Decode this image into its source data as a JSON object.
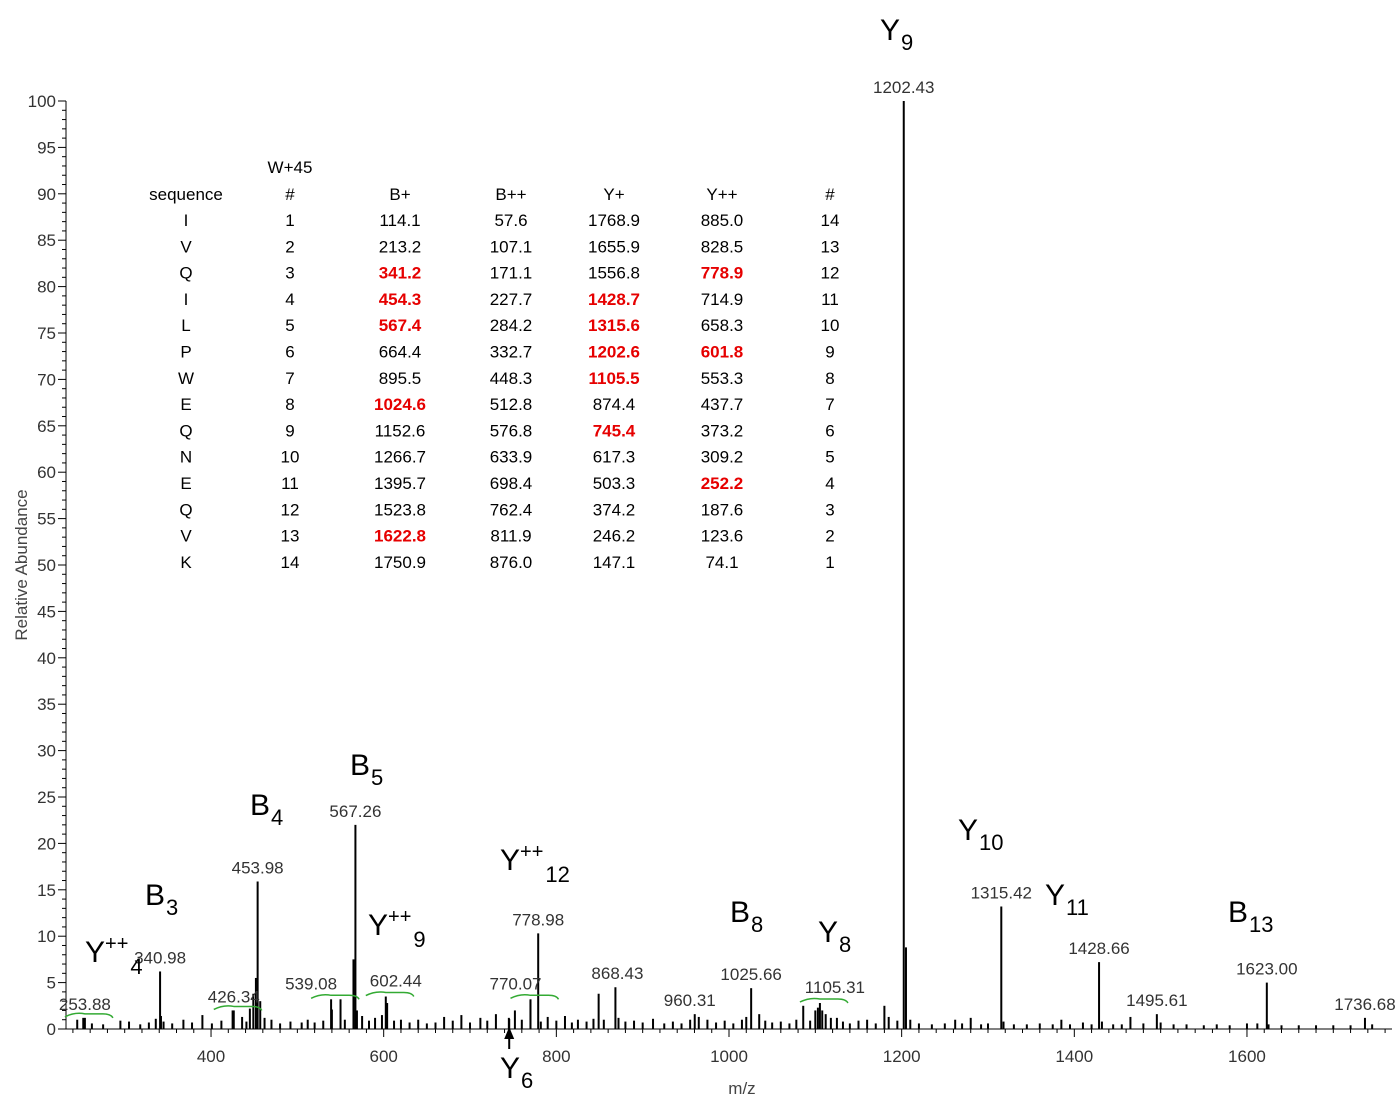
{
  "chart_data": {
    "type": "bar",
    "xlabel": "m/z",
    "ylabel": "Relative Abundance",
    "xlim": [
      232,
      1768
    ],
    "ylim": [
      0,
      100
    ],
    "x_ticks": [
      "400",
      "600",
      "800",
      "1000",
      "1200",
      "1400",
      "1600"
    ],
    "y_ticks": [
      "0",
      "5",
      "10",
      "15",
      "20",
      "25",
      "30",
      "35",
      "40",
      "45",
      "50",
      "55",
      "60",
      "65",
      "70",
      "75",
      "80",
      "85",
      "90",
      "95",
      "100"
    ],
    "labeled_peaks": [
      {
        "mz": 253.88,
        "label": "253.88",
        "value": 1.2
      },
      {
        "mz": 340.98,
        "label": "340.98",
        "value": 6.2
      },
      {
        "mz": 426.34,
        "label": "426.34",
        "value": 2.0
      },
      {
        "mz": 453.98,
        "label": "453.98",
        "value": 15.9
      },
      {
        "mz": 539.08,
        "label": "539.08",
        "value": 3.2
      },
      {
        "mz": 567.26,
        "label": "567.26",
        "value": 22.0
      },
      {
        "mz": 602.44,
        "label": "602.44",
        "value": 3.5
      },
      {
        "mz": 770.07,
        "label": "770.07",
        "value": 3.2
      },
      {
        "mz": 778.98,
        "label": "778.98",
        "value": 10.3
      },
      {
        "mz": 868.43,
        "label": "868.43",
        "value": 4.5
      },
      {
        "mz": 960.31,
        "label": "960.31",
        "value": 1.6
      },
      {
        "mz": 1025.66,
        "label": "1025.66",
        "value": 4.4
      },
      {
        "mz": 1105.31,
        "label": "1105.31",
        "value": 2.8
      },
      {
        "mz": 1202.43,
        "label": "1202.43",
        "value": 100
      },
      {
        "mz": 1315.42,
        "label": "1315.42",
        "value": 13.2
      },
      {
        "mz": 1428.66,
        "label": "1428.66",
        "value": 7.2
      },
      {
        "mz": 1495.61,
        "label": "1495.61",
        "value": 1.6
      },
      {
        "mz": 1623.0,
        "label": "1623.00",
        "value": 5.0
      },
      {
        "mz": 1736.68,
        "label": "1736.68",
        "value": 1.2
      }
    ],
    "minor_peaks": [
      [
        245,
        1.0
      ],
      [
        252,
        1.2
      ],
      [
        262,
        0.6
      ],
      [
        275,
        0.5
      ],
      [
        295,
        0.9
      ],
      [
        305,
        0.8
      ],
      [
        318,
        0.5
      ],
      [
        328,
        0.7
      ],
      [
        336,
        1.1
      ],
      [
        342,
        1.4
      ],
      [
        345,
        0.8
      ],
      [
        355,
        0.6
      ],
      [
        368,
        1.0
      ],
      [
        378,
        0.7
      ],
      [
        390,
        1.5
      ],
      [
        401,
        0.6
      ],
      [
        412,
        0.9
      ],
      [
        425,
        2.0
      ],
      [
        436,
        1.3
      ],
      [
        441,
        0.8
      ],
      [
        445,
        2.2
      ],
      [
        449,
        3.8
      ],
      [
        452,
        5.5
      ],
      [
        457,
        3.0
      ],
      [
        462,
        1.2
      ],
      [
        470,
        1.0
      ],
      [
        480,
        0.6
      ],
      [
        492,
        0.8
      ],
      [
        505,
        0.7
      ],
      [
        512,
        1.0
      ],
      [
        520,
        0.7
      ],
      [
        530,
        0.9
      ],
      [
        540,
        2.1
      ],
      [
        550,
        3.2
      ],
      [
        555,
        1.0
      ],
      [
        565,
        7.5
      ],
      [
        569,
        2.0
      ],
      [
        575,
        1.4
      ],
      [
        583,
        0.9
      ],
      [
        590,
        1.2
      ],
      [
        598,
        1.5
      ],
      [
        604,
        2.8
      ],
      [
        612,
        0.9
      ],
      [
        620,
        1.0
      ],
      [
        630,
        0.7
      ],
      [
        640,
        1.0
      ],
      [
        650,
        0.6
      ],
      [
        660,
        0.7
      ],
      [
        670,
        1.3
      ],
      [
        680,
        0.9
      ],
      [
        690,
        1.5
      ],
      [
        700,
        0.7
      ],
      [
        712,
        1.2
      ],
      [
        720,
        0.9
      ],
      [
        730,
        1.6
      ],
      [
        745,
        1.2
      ],
      [
        752,
        2.0
      ],
      [
        760,
        1.0
      ],
      [
        770,
        3.1
      ],
      [
        782,
        0.8
      ],
      [
        790,
        1.3
      ],
      [
        800,
        0.9
      ],
      [
        810,
        1.4
      ],
      [
        818,
        0.7
      ],
      [
        825,
        1.0
      ],
      [
        835,
        0.8
      ],
      [
        843,
        1.1
      ],
      [
        849,
        3.8
      ],
      [
        855,
        1.0
      ],
      [
        872,
        1.2
      ],
      [
        880,
        0.8
      ],
      [
        890,
        0.9
      ],
      [
        900,
        0.7
      ],
      [
        912,
        1.1
      ],
      [
        925,
        0.6
      ],
      [
        935,
        0.8
      ],
      [
        945,
        0.6
      ],
      [
        955,
        1.0
      ],
      [
        965,
        1.3
      ],
      [
        975,
        1.0
      ],
      [
        985,
        0.7
      ],
      [
        995,
        0.9
      ],
      [
        1005,
        0.6
      ],
      [
        1015,
        1.0
      ],
      [
        1020,
        1.3
      ],
      [
        1035,
        1.6
      ],
      [
        1042,
        0.9
      ],
      [
        1050,
        0.7
      ],
      [
        1060,
        0.8
      ],
      [
        1070,
        0.6
      ],
      [
        1078,
        1.0
      ],
      [
        1086,
        2.5
      ],
      [
        1094,
        0.9
      ],
      [
        1100,
        2.0
      ],
      [
        1103,
        2.3
      ],
      [
        1108,
        2.0
      ],
      [
        1112,
        1.6
      ],
      [
        1118,
        1.2
      ],
      [
        1125,
        1.2
      ],
      [
        1132,
        0.8
      ],
      [
        1140,
        0.6
      ],
      [
        1150,
        0.9
      ],
      [
        1160,
        1.0
      ],
      [
        1170,
        0.6
      ],
      [
        1180,
        2.5
      ],
      [
        1185,
        1.3
      ],
      [
        1195,
        0.9
      ],
      [
        1205,
        8.8
      ],
      [
        1210,
        1.0
      ],
      [
        1220,
        0.6
      ],
      [
        1235,
        0.5
      ],
      [
        1250,
        0.6
      ],
      [
        1262,
        1.0
      ],
      [
        1270,
        0.6
      ],
      [
        1280,
        1.2
      ],
      [
        1292,
        0.5
      ],
      [
        1300,
        0.6
      ],
      [
        1318,
        0.8
      ],
      [
        1330,
        0.5
      ],
      [
        1345,
        0.5
      ],
      [
        1360,
        0.6
      ],
      [
        1375,
        0.5
      ],
      [
        1385,
        1.0
      ],
      [
        1395,
        0.5
      ],
      [
        1410,
        0.7
      ],
      [
        1420,
        0.5
      ],
      [
        1432,
        0.8
      ],
      [
        1445,
        0.5
      ],
      [
        1455,
        0.5
      ],
      [
        1465,
        1.3
      ],
      [
        1480,
        0.6
      ],
      [
        1500,
        0.7
      ],
      [
        1515,
        0.5
      ],
      [
        1530,
        0.5
      ],
      [
        1550,
        0.4
      ],
      [
        1565,
        0.5
      ],
      [
        1580,
        0.4
      ],
      [
        1600,
        0.6
      ],
      [
        1612,
        0.6
      ],
      [
        1625,
        0.5
      ],
      [
        1640,
        0.4
      ],
      [
        1660,
        0.4
      ],
      [
        1680,
        0.4
      ],
      [
        1700,
        0.4
      ],
      [
        1720,
        0.4
      ],
      [
        1745,
        0.5
      ]
    ],
    "ion_annotations": [
      {
        "base": "Y",
        "sub": "9",
        "sup": "",
        "mz_anchor": 1202.43
      },
      {
        "base": "B",
        "sub": "3",
        "sup": "",
        "mz_anchor": 340.98
      },
      {
        "base": "B",
        "sub": "4",
        "sup": "",
        "mz_anchor": 453.98
      },
      {
        "base": "B",
        "sub": "5",
        "sup": "",
        "mz_anchor": 567.26
      },
      {
        "base": "Y",
        "sub": "4",
        "sup": "++",
        "mz_anchor": 253.88
      },
      {
        "base": "Y",
        "sub": "9",
        "sup": "++",
        "mz_anchor": 602.44
      },
      {
        "base": "Y",
        "sub": "12",
        "sup": "++",
        "mz_anchor": 778.98
      },
      {
        "base": "B",
        "sub": "8",
        "sup": "",
        "mz_anchor": 1025.66
      },
      {
        "base": "Y",
        "sub": "8",
        "sup": "",
        "mz_anchor": 1105.31
      },
      {
        "base": "Y",
        "sub": "10",
        "sup": "",
        "mz_anchor": 1315.42
      },
      {
        "base": "Y",
        "sub": "11",
        "sup": "",
        "mz_anchor": 1428.66
      },
      {
        "base": "B",
        "sub": "13",
        "sup": "",
        "mz_anchor": 1623.0
      },
      {
        "base": "Y",
        "sub": "6",
        "sup": "",
        "mz_anchor": 745.4
      }
    ],
    "table": {
      "title": "W+45",
      "columns": [
        "sequence",
        "#",
        "B+",
        "B++",
        "Y+",
        "Y++",
        "#"
      ],
      "rows": [
        [
          "I",
          "1",
          "114.1",
          "57.6",
          "1768.9",
          "885.0",
          "14"
        ],
        [
          "V",
          "2",
          "213.2",
          "107.1",
          "1655.9",
          "828.5",
          "13"
        ],
        [
          "Q",
          "3",
          "341.2",
          "171.1",
          "1556.8",
          "778.9",
          "12"
        ],
        [
          "I",
          "4",
          "454.3",
          "227.7",
          "1428.7",
          "714.9",
          "11"
        ],
        [
          "L",
          "5",
          "567.4",
          "284.2",
          "1315.6",
          "658.3",
          "10"
        ],
        [
          "P",
          "6",
          "664.4",
          "332.7",
          "1202.6",
          "601.8",
          "9"
        ],
        [
          "W",
          "7",
          "895.5",
          "448.3",
          "1105.5",
          "553.3",
          "8"
        ],
        [
          "E",
          "8",
          "1024.6",
          "512.8",
          "874.4",
          "437.7",
          "7"
        ],
        [
          "Q",
          "9",
          "1152.6",
          "576.8",
          "745.4",
          "373.2",
          "6"
        ],
        [
          "N",
          "10",
          "1266.7",
          "633.9",
          "617.3",
          "309.2",
          "5"
        ],
        [
          "E",
          "11",
          "1395.7",
          "698.4",
          "503.3",
          "252.2",
          "4"
        ],
        [
          "Q",
          "12",
          "1523.8",
          "762.4",
          "374.2",
          "187.6",
          "3"
        ],
        [
          "V",
          "13",
          "1622.8",
          "811.9",
          "246.2",
          "123.6",
          "2"
        ],
        [
          "K",
          "14",
          "1750.9",
          "876.0",
          "147.1",
          "74.1",
          "1"
        ]
      ],
      "highlighted": [
        [
          2,
          2
        ],
        [
          2,
          5
        ],
        [
          3,
          2
        ],
        [
          3,
          4
        ],
        [
          4,
          2
        ],
        [
          4,
          4
        ],
        [
          5,
          4
        ],
        [
          5,
          5
        ],
        [
          6,
          4
        ],
        [
          7,
          2
        ],
        [
          8,
          4
        ],
        [
          10,
          5
        ],
        [
          12,
          2
        ]
      ],
      "highlight_color": "#e60000"
    },
    "colors": {
      "peaks": "#000000",
      "isotope_marks": "#33aa33",
      "axis": "#000000"
    }
  }
}
